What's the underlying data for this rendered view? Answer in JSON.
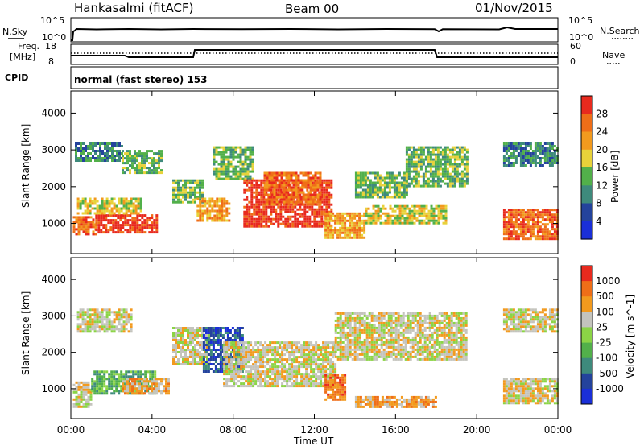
{
  "header": {
    "station": "Hankasalmi (fitACF)",
    "beam": "Beam 00",
    "date": "01/Nov/2015"
  },
  "top_panels": {
    "nsky_label": "N.Sky",
    "nsky_ticks": [
      "10^5",
      "10^0"
    ],
    "nsearch_label": "N.Search",
    "nsearch_ticks": [
      "10^5",
      "10^0"
    ],
    "freq_label": "Freq.",
    "freq_unit": "[MHz]",
    "freq_ticks": [
      "18",
      "8"
    ],
    "nave_label": "Nave",
    "nave_ticks": [
      "60",
      "0"
    ],
    "cpid_label": "CPID",
    "cpid_value": "normal (fast stereo) 153"
  },
  "colors": {
    "white": "#ffffff",
    "gray": "#c4c4bd",
    "blue": "#1a2fd8",
    "navy": "#24439c",
    "teal": "#3e8a7c",
    "green": "#52b04a",
    "lightgreen": "#8bd446",
    "yellow": "#e8d23a",
    "orange": "#f29a1e",
    "darkorange": "#ef6e18",
    "red": "#e82a1e",
    "deepred": "#d7161b"
  },
  "chart_data": [
    {
      "type": "heatmap",
      "title": "Power",
      "xlabel": "",
      "ylabel": "Slant Range [km]",
      "x_ticks": [
        "00:00",
        "04:00",
        "08:00",
        "12:00",
        "16:00",
        "20:00",
        "00:00"
      ],
      "y_ticks": [
        "1000",
        "2000",
        "3000",
        "4000"
      ],
      "xlim_hours": [
        0,
        24
      ],
      "ylim_km": [
        180,
        4600
      ],
      "colorbar": {
        "label": "Power [dB]",
        "ticks": [
          "4",
          "8",
          "12",
          "16",
          "20",
          "24",
          "28"
        ],
        "colors": [
          "#1a2fd8",
          "#24439c",
          "#3e8a7c",
          "#52b04a",
          "#e8d23a",
          "#f29a1e",
          "#ef6e18",
          "#e82a1e"
        ]
      },
      "regions": [
        {
          "t": [
            0.1,
            1.2
          ],
          "r": [
            700,
            1200
          ],
          "level": 6
        },
        {
          "t": [
            1.2,
            4.2
          ],
          "r": [
            750,
            1250
          ],
          "level": 7
        },
        {
          "t": [
            0.3,
            3.5
          ],
          "r": [
            1300,
            1700
          ],
          "level": 4
        },
        {
          "t": [
            0.2,
            2.5
          ],
          "r": [
            2700,
            3200
          ],
          "level": 2
        },
        {
          "t": [
            2.5,
            4.5
          ],
          "r": [
            2400,
            3000
          ],
          "level": 3
        },
        {
          "t": [
            5.0,
            6.5
          ],
          "r": [
            1600,
            2200
          ],
          "level": 3
        },
        {
          "t": [
            6.2,
            7.8
          ],
          "r": [
            1100,
            1700
          ],
          "level": 5
        },
        {
          "t": [
            7.0,
            9.0
          ],
          "r": [
            2200,
            3100
          ],
          "level": 3
        },
        {
          "t": [
            8.5,
            12.8
          ],
          "r": [
            900,
            2200
          ],
          "level": 7
        },
        {
          "t": [
            9.5,
            12.3
          ],
          "r": [
            1500,
            2400
          ],
          "level": 6
        },
        {
          "t": [
            12.5,
            14.5
          ],
          "r": [
            600,
            1300
          ],
          "level": 5
        },
        {
          "t": [
            14.5,
            18.5
          ],
          "r": [
            1000,
            1500
          ],
          "level": 4
        },
        {
          "t": [
            14.0,
            16.5
          ],
          "r": [
            1700,
            2400
          ],
          "level": 3
        },
        {
          "t": [
            16.5,
            19.5
          ],
          "r": [
            2000,
            3100
          ],
          "level": 3
        },
        {
          "t": [
            21.3,
            24.0
          ],
          "r": [
            600,
            1400
          ],
          "level": 6
        },
        {
          "t": [
            21.3,
            24.0
          ],
          "r": [
            2600,
            3200
          ],
          "level": 2
        }
      ]
    },
    {
      "type": "heatmap",
      "title": "Velocity",
      "xlabel": "Time UT",
      "ylabel": "Slant Range [km]",
      "x_ticks": [
        "00:00",
        "04:00",
        "08:00",
        "12:00",
        "16:00",
        "20:00",
        "00:00"
      ],
      "y_ticks": [
        "1000",
        "2000",
        "3000",
        "4000"
      ],
      "xlim_hours": [
        0,
        24
      ],
      "ylim_km": [
        180,
        4600
      ],
      "colorbar": {
        "label": "Velocity [m s^-1]",
        "ticks": [
          "1000",
          "500",
          "100",
          "25",
          "-25",
          "-100",
          "-500",
          "-1000"
        ],
        "colors": [
          "#1a2fd8",
          "#24439c",
          "#3e8a7c",
          "#52b04a",
          "#8bd446",
          "#c4c4bd",
          "#f29a1e",
          "#ef6e18",
          "#e82a1e"
        ]
      },
      "regions": [
        {
          "t": [
            0.1,
            1.0
          ],
          "r": [
            500,
            1200
          ],
          "level": 5
        },
        {
          "t": [
            1.0,
            4.2
          ],
          "r": [
            900,
            1500
          ],
          "level": 3
        },
        {
          "t": [
            2.5,
            4.8
          ],
          "r": [
            900,
            1300
          ],
          "level": 6
        },
        {
          "t": [
            0.3,
            3.0
          ],
          "r": [
            2600,
            3200
          ],
          "level": 5
        },
        {
          "t": [
            5.0,
            6.8
          ],
          "r": [
            1700,
            2700
          ],
          "level": 5
        },
        {
          "t": [
            6.5,
            8.5
          ],
          "r": [
            1500,
            2700
          ],
          "level": 1
        },
        {
          "t": [
            7.5,
            13.0
          ],
          "r": [
            1100,
            2300
          ],
          "level": 5
        },
        {
          "t": [
            12.5,
            13.5
          ],
          "r": [
            700,
            1400
          ],
          "level": 7
        },
        {
          "t": [
            14.0,
            18.0
          ],
          "r": [
            500,
            800
          ],
          "level": 6
        },
        {
          "t": [
            13.0,
            19.5
          ],
          "r": [
            1800,
            3100
          ],
          "level": 5
        },
        {
          "t": [
            21.3,
            24.0
          ],
          "r": [
            600,
            1300
          ],
          "level": 5
        },
        {
          "t": [
            21.3,
            24.0
          ],
          "r": [
            2600,
            3200
          ],
          "level": 5
        }
      ]
    }
  ]
}
